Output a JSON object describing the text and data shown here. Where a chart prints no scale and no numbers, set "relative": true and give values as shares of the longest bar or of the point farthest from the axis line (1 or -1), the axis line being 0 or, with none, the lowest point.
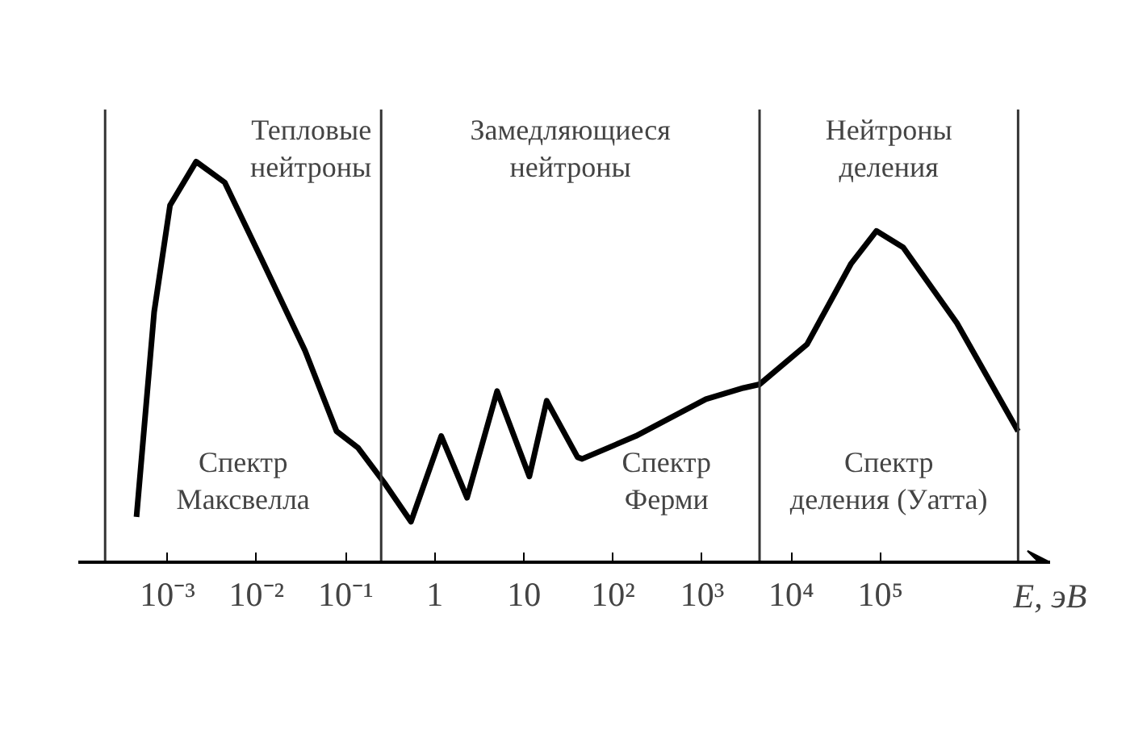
{
  "chart_data": {
    "type": "line",
    "relative": true,
    "log": "x",
    "xlabel": "E, эВ",
    "xlim": [
      0.0001,
      8000000
    ],
    "xticks": [
      {
        "value": 0.001,
        "label": "10⁻³"
      },
      {
        "value": 0.01,
        "label": "10⁻²"
      },
      {
        "value": 0.1,
        "label": "10⁻¹"
      },
      1,
      10,
      {
        "value": 100,
        "label": "10²"
      },
      {
        "value": 1000,
        "label": "10³"
      },
      {
        "value": 10000,
        "label": "10⁴"
      },
      {
        "value": 100000,
        "label": "10⁵"
      }
    ],
    "x": [
      0.00045,
      0.00071,
      0.00107,
      0.0021,
      0.0044,
      0.0113,
      0.035,
      0.079,
      0.137,
      0.28,
      0.54,
      1.18,
      2.3,
      5.0,
      11.5,
      18,
      40,
      45,
      180,
      1100,
      2900,
      4400,
      15000,
      47000,
      90000,
      180000,
      720000,
      3500000
    ],
    "series": [
      {
        "color": "#000000",
        "values": [
          0.113,
          0.625,
          0.891,
          1.0,
          0.948,
          0.758,
          0.528,
          0.327,
          0.286,
          0.194,
          0.101,
          0.315,
          0.161,
          0.427,
          0.214,
          0.403,
          0.262,
          0.258,
          0.315,
          0.407,
          0.435,
          0.444,
          0.544,
          0.746,
          0.827,
          0.786,
          0.597,
          0.327
        ]
      }
    ],
    "ref_lines": [
      {
        "axis": "x",
        "value": 0.0002,
        "color": "#333333"
      },
      {
        "axis": "x",
        "value": 0.25,
        "color": "#333333"
      },
      {
        "axis": "x",
        "value": 4400,
        "color": "#333333"
      },
      {
        "axis": "x",
        "value": 3500000,
        "color": "#333333"
      }
    ],
    "annotations": [
      "Тепловые\nнейтроны",
      "Замедляющиеся\nнейтроны",
      "Нейтроны\nделения",
      "Спектр\nМаксвелла",
      "Спектр\nФерми",
      "Спектр\nделения (Уатта)"
    ],
    "grid": false,
    "marker": "none",
    "line_style": "solid"
  }
}
